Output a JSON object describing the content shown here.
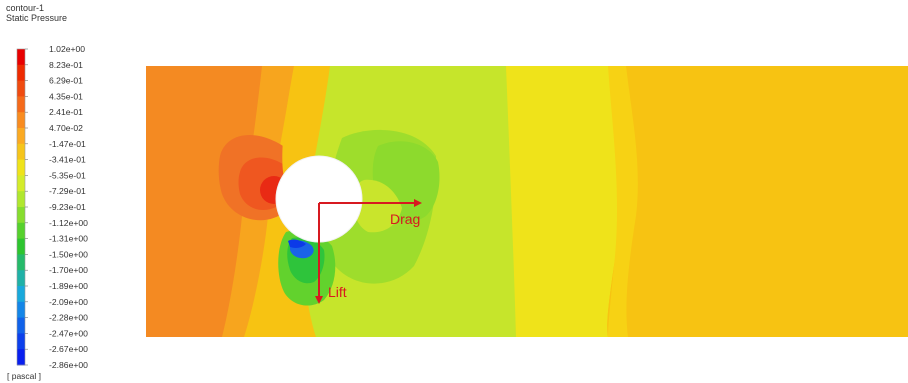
{
  "figure": {
    "contour_name": "contour-1",
    "variable": "Static Pressure",
    "units": "[ pascal ]"
  },
  "legend": {
    "labels": [
      "1.02e+00",
      "8.23e-01",
      "6.29e-01",
      "4.35e-01",
      "2.41e-01",
      "4.70e-02",
      "-1.47e-01",
      "-3.41e-01",
      "-5.35e-01",
      "-7.29e-01",
      "-9.23e-01",
      "-1.12e+00",
      "-1.31e+00",
      "-1.50e+00",
      "-1.70e+00",
      "-1.89e+00",
      "-2.09e+00",
      "-2.28e+00",
      "-2.47e+00",
      "-2.67e+00",
      "-2.86e+00"
    ],
    "colors": [
      "#e80000",
      "#ee2a00",
      "#f04b10",
      "#f56a1a",
      "#f98c20",
      "#fbaa22",
      "#f6c51b",
      "#efe31a",
      "#d4ec2a",
      "#b0e72e",
      "#86dd2e",
      "#56d12d",
      "#2dc52f",
      "#25ba6a",
      "#1fb1a7",
      "#18a9dc",
      "#1486e8",
      "#1062ea",
      "#0c40ec",
      "#081fef"
    ]
  },
  "annotations": {
    "drag_label": "Drag",
    "lift_label": "Lift",
    "arrow_color": "#d71920"
  }
}
